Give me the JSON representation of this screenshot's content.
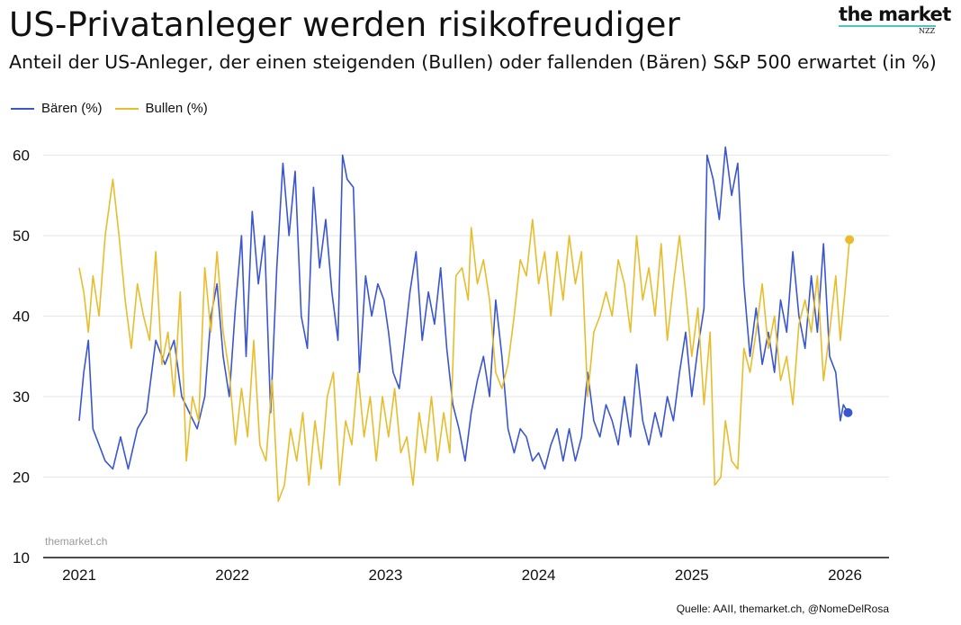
{
  "header": {
    "title": "US-Privatanleger werden risikofreudiger",
    "subtitle": "Anteil der US-Anleger, der einen steigenden (Bullen) oder fallenden (Bären) S&P 500 erwartet (in %)"
  },
  "brand": {
    "name": "the market",
    "sub": "NZZ"
  },
  "watermark": "themarket.ch",
  "source": "Quelle: AAII, themarket.ch, @NomeDelRosa",
  "colors": {
    "baeren": "#3a56cf",
    "bullen": "#e8bd2d",
    "grid": "#e6e6e6",
    "axis": "#111111",
    "brand_accent": "#4fc3c8"
  },
  "chart_data": {
    "type": "line",
    "ylim": [
      10,
      62
    ],
    "yticks": [
      10,
      20,
      30,
      40,
      50,
      60
    ],
    "xlim": [
      2021.0,
      2026.25
    ],
    "xticks": [
      2021,
      2022,
      2023,
      2024,
      2025,
      2026
    ],
    "grid": true,
    "legend_position": "top-left",
    "series": [
      {
        "name": "Bären (%)",
        "color": "#3a56cf",
        "end_marker": true,
        "points": [
          [
            2021.0,
            27
          ],
          [
            2021.03,
            33
          ],
          [
            2021.06,
            37
          ],
          [
            2021.09,
            26
          ],
          [
            2021.13,
            24
          ],
          [
            2021.17,
            22
          ],
          [
            2021.22,
            21
          ],
          [
            2021.27,
            25
          ],
          [
            2021.32,
            21
          ],
          [
            2021.38,
            26
          ],
          [
            2021.44,
            28
          ],
          [
            2021.5,
            37
          ],
          [
            2021.56,
            34
          ],
          [
            2021.62,
            37
          ],
          [
            2021.67,
            30
          ],
          [
            2021.72,
            28
          ],
          [
            2021.77,
            26
          ],
          [
            2021.82,
            30
          ],
          [
            2021.86,
            40
          ],
          [
            2021.9,
            44
          ],
          [
            2021.94,
            35
          ],
          [
            2021.98,
            30
          ],
          [
            2022.02,
            41
          ],
          [
            2022.06,
            50
          ],
          [
            2022.09,
            35
          ],
          [
            2022.13,
            53
          ],
          [
            2022.17,
            44
          ],
          [
            2022.21,
            50
          ],
          [
            2022.25,
            28
          ],
          [
            2022.29,
            46
          ],
          [
            2022.33,
            59
          ],
          [
            2022.37,
            50
          ],
          [
            2022.41,
            58
          ],
          [
            2022.45,
            40
          ],
          [
            2022.49,
            36
          ],
          [
            2022.53,
            56
          ],
          [
            2022.57,
            46
          ],
          [
            2022.61,
            52
          ],
          [
            2022.65,
            43
          ],
          [
            2022.69,
            37
          ],
          [
            2022.72,
            60
          ],
          [
            2022.75,
            57
          ],
          [
            2022.79,
            56
          ],
          [
            2022.83,
            33
          ],
          [
            2022.87,
            45
          ],
          [
            2022.91,
            40
          ],
          [
            2022.95,
            44
          ],
          [
            2022.99,
            42
          ],
          [
            2023.02,
            38
          ],
          [
            2023.05,
            33
          ],
          [
            2023.09,
            31
          ],
          [
            2023.12,
            36
          ],
          [
            2023.16,
            43
          ],
          [
            2023.2,
            48
          ],
          [
            2023.24,
            37
          ],
          [
            2023.28,
            43
          ],
          [
            2023.32,
            39
          ],
          [
            2023.36,
            46
          ],
          [
            2023.4,
            36
          ],
          [
            2023.44,
            29
          ],
          [
            2023.48,
            26
          ],
          [
            2023.52,
            22
          ],
          [
            2023.56,
            28
          ],
          [
            2023.6,
            32
          ],
          [
            2023.64,
            35
          ],
          [
            2023.68,
            30
          ],
          [
            2023.72,
            42
          ],
          [
            2023.76,
            35
          ],
          [
            2023.8,
            26
          ],
          [
            2023.84,
            23
          ],
          [
            2023.88,
            26
          ],
          [
            2023.92,
            25
          ],
          [
            2023.96,
            22
          ],
          [
            2024.0,
            23
          ],
          [
            2024.04,
            21
          ],
          [
            2024.08,
            24
          ],
          [
            2024.12,
            26
          ],
          [
            2024.16,
            22
          ],
          [
            2024.2,
            26
          ],
          [
            2024.24,
            22
          ],
          [
            2024.28,
            25
          ],
          [
            2024.32,
            33
          ],
          [
            2024.36,
            27
          ],
          [
            2024.4,
            25
          ],
          [
            2024.44,
            29
          ],
          [
            2024.48,
            27
          ],
          [
            2024.52,
            24
          ],
          [
            2024.56,
            30
          ],
          [
            2024.6,
            25
          ],
          [
            2024.64,
            34
          ],
          [
            2024.68,
            27
          ],
          [
            2024.72,
            24
          ],
          [
            2024.76,
            28
          ],
          [
            2024.8,
            25
          ],
          [
            2024.84,
            30
          ],
          [
            2024.88,
            27
          ],
          [
            2024.92,
            33
          ],
          [
            2024.96,
            38
          ],
          [
            2025.0,
            30
          ],
          [
            2025.04,
            36
          ],
          [
            2025.08,
            41
          ],
          [
            2025.1,
            60
          ],
          [
            2025.14,
            57
          ],
          [
            2025.18,
            52
          ],
          [
            2025.22,
            61
          ],
          [
            2025.26,
            55
          ],
          [
            2025.3,
            59
          ],
          [
            2025.34,
            44
          ],
          [
            2025.38,
            35
          ],
          [
            2025.42,
            41
          ],
          [
            2025.46,
            34
          ],
          [
            2025.5,
            38
          ],
          [
            2025.54,
            33
          ],
          [
            2025.58,
            42
          ],
          [
            2025.62,
            38
          ],
          [
            2025.66,
            48
          ],
          [
            2025.7,
            40
          ],
          [
            2025.74,
            36
          ],
          [
            2025.78,
            45
          ],
          [
            2025.82,
            38
          ],
          [
            2025.86,
            49
          ],
          [
            2025.9,
            35
          ],
          [
            2025.94,
            33
          ],
          [
            2025.97,
            27
          ],
          [
            2025.99,
            29
          ],
          [
            2026.02,
            28
          ]
        ]
      },
      {
        "name": "Bullen (%)",
        "color": "#e8bd2d",
        "end_marker": true,
        "points": [
          [
            2021.0,
            46
          ],
          [
            2021.03,
            43
          ],
          [
            2021.06,
            38
          ],
          [
            2021.09,
            45
          ],
          [
            2021.13,
            40
          ],
          [
            2021.17,
            50
          ],
          [
            2021.22,
            57
          ],
          [
            2021.26,
            50
          ],
          [
            2021.3,
            42
          ],
          [
            2021.34,
            36
          ],
          [
            2021.38,
            44
          ],
          [
            2021.42,
            40
          ],
          [
            2021.46,
            37
          ],
          [
            2021.5,
            48
          ],
          [
            2021.54,
            34
          ],
          [
            2021.58,
            38
          ],
          [
            2021.62,
            30
          ],
          [
            2021.66,
            43
          ],
          [
            2021.7,
            22
          ],
          [
            2021.74,
            30
          ],
          [
            2021.78,
            27
          ],
          [
            2021.82,
            46
          ],
          [
            2021.86,
            38
          ],
          [
            2021.9,
            48
          ],
          [
            2021.94,
            38
          ],
          [
            2021.98,
            33
          ],
          [
            2022.02,
            24
          ],
          [
            2022.06,
            31
          ],
          [
            2022.1,
            25
          ],
          [
            2022.14,
            37
          ],
          [
            2022.18,
            24
          ],
          [
            2022.22,
            22
          ],
          [
            2022.26,
            32
          ],
          [
            2022.3,
            17
          ],
          [
            2022.34,
            19
          ],
          [
            2022.38,
            26
          ],
          [
            2022.42,
            22
          ],
          [
            2022.46,
            28
          ],
          [
            2022.5,
            19
          ],
          [
            2022.54,
            27
          ],
          [
            2022.58,
            21
          ],
          [
            2022.62,
            30
          ],
          [
            2022.66,
            33
          ],
          [
            2022.7,
            19
          ],
          [
            2022.74,
            27
          ],
          [
            2022.78,
            24
          ],
          [
            2022.82,
            33
          ],
          [
            2022.86,
            25
          ],
          [
            2022.9,
            30
          ],
          [
            2022.94,
            22
          ],
          [
            2022.98,
            30
          ],
          [
            2023.02,
            25
          ],
          [
            2023.06,
            31
          ],
          [
            2023.1,
            23
          ],
          [
            2023.14,
            25
          ],
          [
            2023.18,
            19
          ],
          [
            2023.22,
            28
          ],
          [
            2023.26,
            23
          ],
          [
            2023.3,
            30
          ],
          [
            2023.34,
            22
          ],
          [
            2023.38,
            28
          ],
          [
            2023.42,
            23
          ],
          [
            2023.46,
            45
          ],
          [
            2023.5,
            46
          ],
          [
            2023.54,
            42
          ],
          [
            2023.56,
            51
          ],
          [
            2023.6,
            44
          ],
          [
            2023.64,
            47
          ],
          [
            2023.68,
            42
          ],
          [
            2023.72,
            33
          ],
          [
            2023.76,
            31
          ],
          [
            2023.8,
            34
          ],
          [
            2023.84,
            40
          ],
          [
            2023.88,
            47
          ],
          [
            2023.92,
            45
          ],
          [
            2023.96,
            52
          ],
          [
            2024.0,
            44
          ],
          [
            2024.04,
            48
          ],
          [
            2024.08,
            40
          ],
          [
            2024.12,
            48
          ],
          [
            2024.16,
            42
          ],
          [
            2024.2,
            50
          ],
          [
            2024.24,
            44
          ],
          [
            2024.28,
            48
          ],
          [
            2024.32,
            30
          ],
          [
            2024.36,
            38
          ],
          [
            2024.4,
            40
          ],
          [
            2024.44,
            43
          ],
          [
            2024.48,
            40
          ],
          [
            2024.52,
            47
          ],
          [
            2024.56,
            44
          ],
          [
            2024.6,
            38
          ],
          [
            2024.64,
            50
          ],
          [
            2024.68,
            42
          ],
          [
            2024.72,
            46
          ],
          [
            2024.76,
            40
          ],
          [
            2024.8,
            49
          ],
          [
            2024.84,
            37
          ],
          [
            2024.88,
            44
          ],
          [
            2024.92,
            50
          ],
          [
            2024.96,
            43
          ],
          [
            2025.0,
            35
          ],
          [
            2025.04,
            41
          ],
          [
            2025.08,
            29
          ],
          [
            2025.12,
            38
          ],
          [
            2025.15,
            19
          ],
          [
            2025.19,
            20
          ],
          [
            2025.22,
            27
          ],
          [
            2025.26,
            22
          ],
          [
            2025.3,
            21
          ],
          [
            2025.34,
            36
          ],
          [
            2025.38,
            33
          ],
          [
            2025.42,
            38
          ],
          [
            2025.46,
            44
          ],
          [
            2025.5,
            36
          ],
          [
            2025.54,
            40
          ],
          [
            2025.58,
            32
          ],
          [
            2025.62,
            35
          ],
          [
            2025.66,
            29
          ],
          [
            2025.7,
            39
          ],
          [
            2025.74,
            42
          ],
          [
            2025.78,
            38
          ],
          [
            2025.82,
            45
          ],
          [
            2025.86,
            32
          ],
          [
            2025.9,
            38
          ],
          [
            2025.94,
            45
          ],
          [
            2025.97,
            37
          ],
          [
            2026.0,
            43
          ],
          [
            2026.03,
            49.5
          ]
        ]
      }
    ]
  }
}
